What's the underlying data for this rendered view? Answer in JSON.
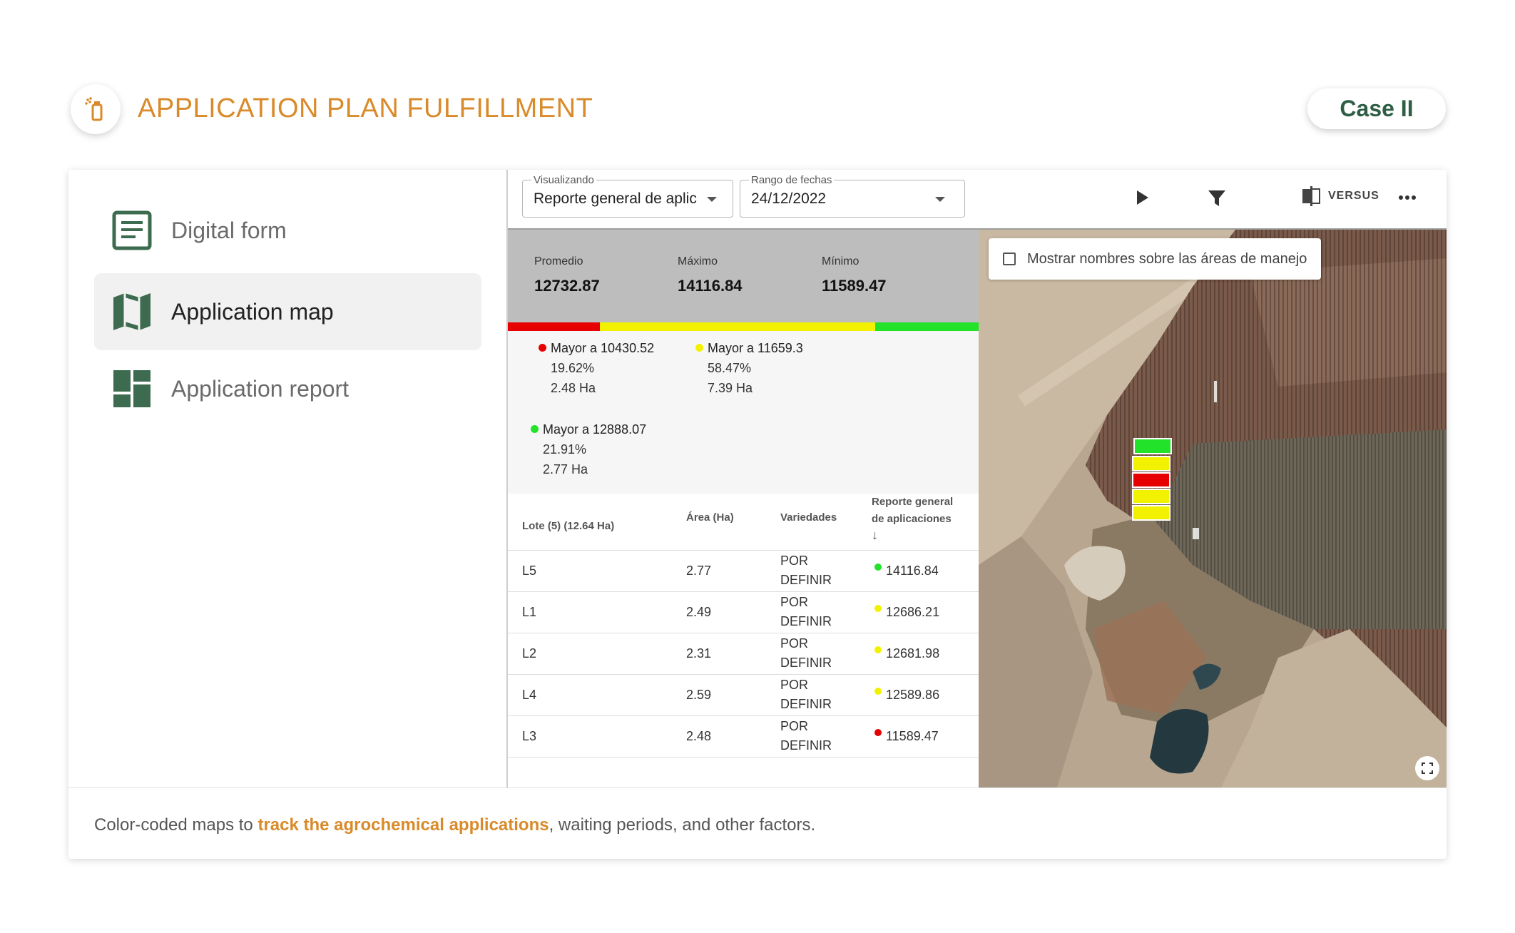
{
  "header": {
    "title": "APPLICATION PLAN FULFILLMENT",
    "case_label": "Case II",
    "logo_icon": "spray-bottle-icon"
  },
  "colors": {
    "accent": "#d98a2a",
    "brand_green": "#2e5f45",
    "red": "#e60000",
    "yellow": "#f2f200",
    "green": "#22e22a"
  },
  "sidebar": {
    "items": [
      {
        "label": "Digital form",
        "icon": "document-icon",
        "active": false
      },
      {
        "label": "Application map",
        "icon": "map-icon",
        "active": true
      },
      {
        "label": "Application report",
        "icon": "dashboard-icon",
        "active": false
      }
    ]
  },
  "toolbar": {
    "viewing_label": "Visualizando",
    "viewing_value": "Reporte general de aplic",
    "date_label": "Rango de fechas",
    "date_value": "24/12/2022",
    "versus_label": "VERSUS"
  },
  "stats": {
    "avg_label": "Promedio",
    "avg_value": "12732.87",
    "max_label": "Máximo",
    "max_value": "14116.84",
    "min_label": "Mínimo",
    "min_value": "11589.47"
  },
  "legend": [
    {
      "label": "Mayor a 10430.52",
      "percent": "19.62%",
      "area": "2.48 Ha",
      "color": "#e60000"
    },
    {
      "label": "Mayor a 11659.3",
      "percent": "58.47%",
      "area": "7.39 Ha",
      "color": "#f2f200"
    },
    {
      "label": "Mayor a 12888.07",
      "percent": "21.91%",
      "area": "2.77 Ha",
      "color": "#22e22a"
    }
  ],
  "legend_bar": [
    {
      "color": "#e60000",
      "fraction": 0.1962
    },
    {
      "color": "#f2f200",
      "fraction": 0.5847
    },
    {
      "color": "#22e22a",
      "fraction": 0.2191
    }
  ],
  "table": {
    "headers": {
      "lote": "Lote (5) (12.64 Ha)",
      "area": "Área (Ha)",
      "variedades": "Variedades",
      "reporte_1": "Reporte general",
      "reporte_2": "de aplicaciones",
      "sort_arrow": "↓"
    },
    "rows": [
      {
        "lote": "L5",
        "area": "2.77",
        "var1": "POR",
        "var2": "DEFINIR",
        "value": "14116.84",
        "color": "#22e22a"
      },
      {
        "lote": "L1",
        "area": "2.49",
        "var1": "POR",
        "var2": "DEFINIR",
        "value": "12686.21",
        "color": "#f2f200"
      },
      {
        "lote": "L2",
        "area": "2.31",
        "var1": "POR",
        "var2": "DEFINIR",
        "value": "12681.98",
        "color": "#f2f200"
      },
      {
        "lote": "L4",
        "area": "2.59",
        "var1": "POR",
        "var2": "DEFINIR",
        "value": "12589.86",
        "color": "#f2f200"
      },
      {
        "lote": "L3",
        "area": "2.48",
        "var1": "POR",
        "var2": "DEFINIR",
        "value": "11589.47",
        "color": "#e60000"
      }
    ]
  },
  "map": {
    "checkbox_label": "Mostrar nombres sobre las áreas de manejo",
    "lot_colors": [
      "#22e22a",
      "#f2f200",
      "#e60000",
      "#f2f200",
      "#f2f200"
    ]
  },
  "footer": {
    "text_before": "Color-coded maps to ",
    "text_highlight": "track the agrochemical applications",
    "text_after": ", waiting periods, and other factors."
  }
}
